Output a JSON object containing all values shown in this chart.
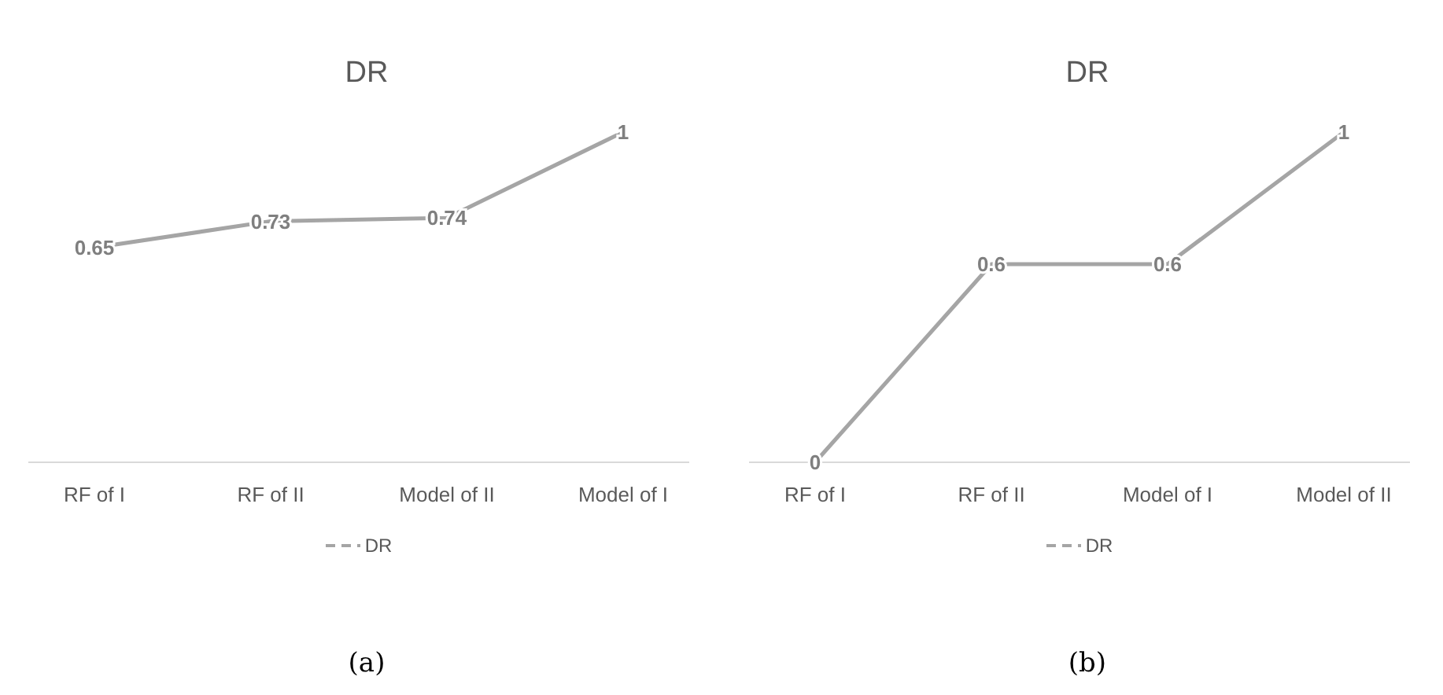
{
  "chart_data": [
    {
      "type": "line",
      "title": "DR",
      "categories": [
        "RF of I",
        "RF of II",
        "Model of II",
        "Model of I"
      ],
      "series": [
        {
          "name": "DR",
          "color": "#a5a5a5",
          "values": [
            0.65,
            0.73,
            0.74,
            1
          ]
        }
      ],
      "data_labels": true,
      "legend": "bottom",
      "grid": false,
      "marker": "none",
      "line_style": "solid",
      "annotations": [
        "(a)"
      ]
    },
    {
      "type": "line",
      "title": "DR",
      "categories": [
        "RF of I",
        "RF of II",
        "Model of I",
        "Model of II"
      ],
      "series": [
        {
          "name": "DR",
          "color": "#a5a5a5",
          "values": [
            0,
            0.6,
            0.6,
            1
          ]
        }
      ],
      "data_labels": true,
      "legend": "bottom",
      "grid": false,
      "marker": "none",
      "line_style": "solid",
      "annotations": [
        "(b)"
      ]
    }
  ]
}
